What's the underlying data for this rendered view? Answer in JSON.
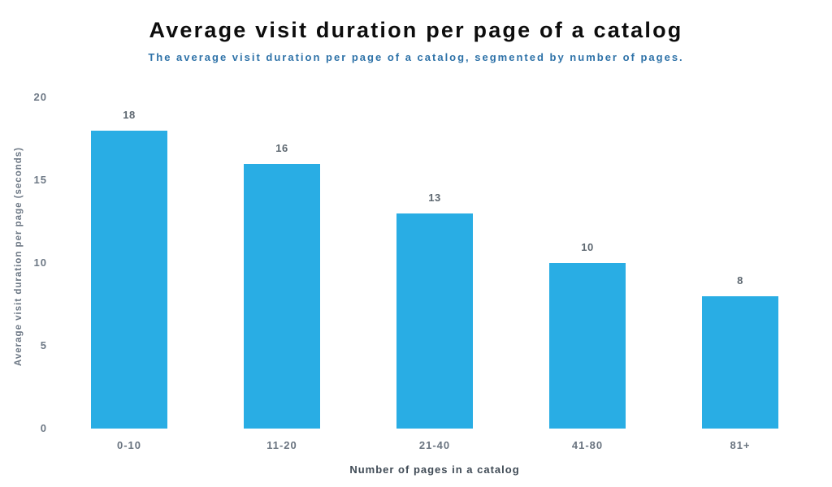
{
  "subtitle": "The average visit duration per page of a catalog, segmented by number of pages.",
  "colors": {
    "bar": "#29ade4",
    "title": "#0d0d0d",
    "subtitle": "#2e72a8",
    "tick_label": "#6d7885",
    "value_label": "#5d6770",
    "category_label": "#6a7480",
    "x_axis_title": "#3f4a55",
    "background": "#ffffff"
  },
  "chart_data": {
    "type": "bar",
    "title": "Average visit duration per page of a catalog",
    "subtitle": "The average visit duration per page of a catalog, segmented by number of pages.",
    "categories": [
      "0-10",
      "11-20",
      "21-40",
      "41-80",
      "81+"
    ],
    "values": [
      18,
      16,
      13,
      10,
      8
    ],
    "xlabel": "Number of pages in a catalog",
    "ylabel": "Average visit duration per page (seconds)",
    "ylim": [
      0,
      20
    ],
    "yticks": [
      0,
      5,
      10,
      15,
      20
    ],
    "grid": false,
    "legend": "none",
    "bar_color": "#29ade4"
  }
}
